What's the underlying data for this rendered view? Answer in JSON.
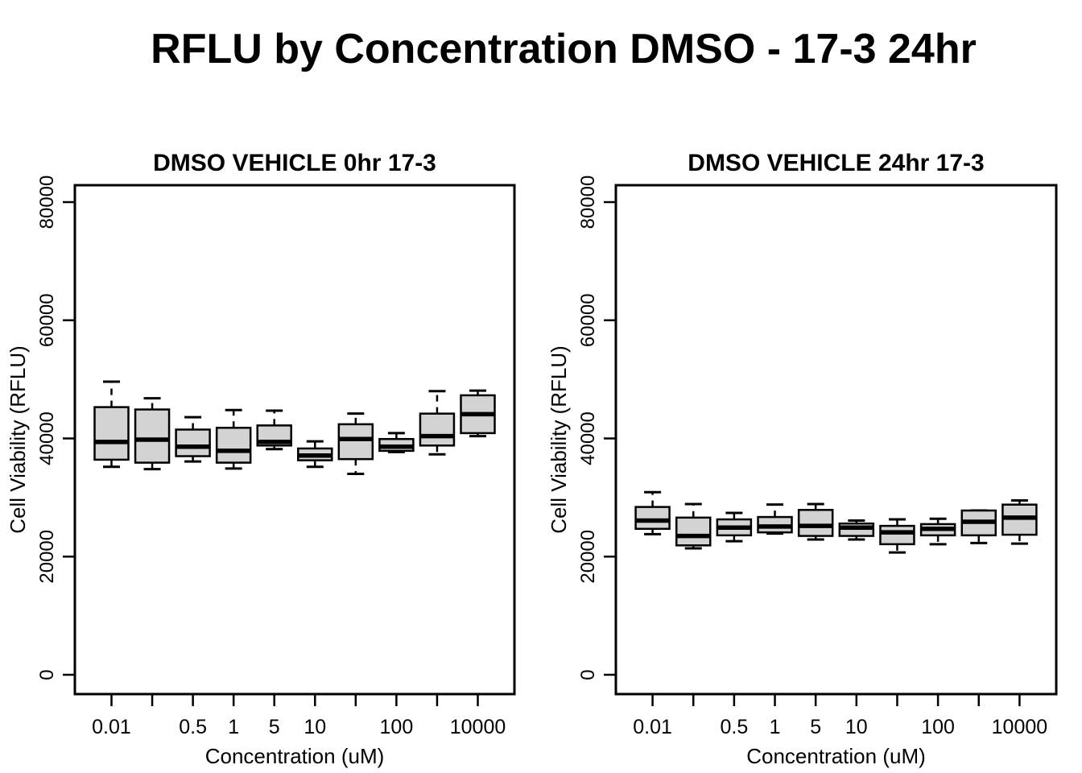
{
  "title": "RFLU by Concentration DMSO - 17-3 24hr",
  "styles": {
    "box_fill": "#d3d3d3",
    "line_color": "#000000",
    "background": "#ffffff"
  },
  "chart_data": [
    {
      "type": "boxplot",
      "title": "DMSO VEHICLE 0hr 17-3",
      "xlabel": "Concentration (uM)",
      "ylabel": "Cell Viability (RFLU)",
      "ylim": [
        0,
        80000
      ],
      "grid": false,
      "ytick_values": [
        0,
        20000,
        40000,
        60000,
        80000
      ],
      "ytick_labels": [
        "0",
        "20000",
        "40000",
        "60000",
        "80000"
      ],
      "xtick_labels": [
        "0.01",
        "",
        "0.5",
        "1",
        "5",
        "10",
        "",
        "100",
        "",
        "10000"
      ],
      "boxes": [
        {
          "whisker_low": 35200,
          "q1": 36400,
          "median": 39400,
          "q3": 45300,
          "whisker_high": 49600
        },
        {
          "whisker_low": 34800,
          "q1": 35900,
          "median": 39800,
          "q3": 44900,
          "whisker_high": 46800
        },
        {
          "whisker_low": 36100,
          "q1": 37000,
          "median": 38600,
          "q3": 41500,
          "whisker_high": 43600
        },
        {
          "whisker_low": 34900,
          "q1": 35900,
          "median": 37900,
          "q3": 41800,
          "whisker_high": 44800
        },
        {
          "whisker_low": 38200,
          "q1": 38800,
          "median": 39400,
          "q3": 42200,
          "whisker_high": 44700
        },
        {
          "whisker_low": 35200,
          "q1": 36300,
          "median": 37100,
          "q3": 38300,
          "whisker_high": 39500
        },
        {
          "whisker_low": 34000,
          "q1": 36500,
          "median": 39900,
          "q3": 42400,
          "whisker_high": 44200
        },
        {
          "whisker_low": 37700,
          "q1": 37900,
          "median": 38600,
          "q3": 39900,
          "whisker_high": 40900
        },
        {
          "whisker_low": 37300,
          "q1": 38800,
          "median": 40400,
          "q3": 44200,
          "whisker_high": 48000
        },
        {
          "whisker_low": 40400,
          "q1": 40900,
          "median": 44100,
          "q3": 47300,
          "whisker_high": 48100
        }
      ]
    },
    {
      "type": "boxplot",
      "title": "DMSO VEHICLE 24hr 17-3",
      "xlabel": "Concentration (uM)",
      "ylabel": "Cell Viability (RFLU)",
      "ylim": [
        0,
        80000
      ],
      "grid": false,
      "ytick_values": [
        0,
        20000,
        40000,
        60000,
        80000
      ],
      "ytick_labels": [
        "0",
        "20000",
        "40000",
        "60000",
        "80000"
      ],
      "xtick_labels": [
        "0.01",
        "",
        "0.5",
        "1",
        "5",
        "10",
        "",
        "100",
        "",
        "10000"
      ],
      "boxes": [
        {
          "whisker_low": 23800,
          "q1": 24700,
          "median": 26100,
          "q3": 28400,
          "whisker_high": 30900
        },
        {
          "whisker_low": 21400,
          "q1": 21900,
          "median": 23500,
          "q3": 26600,
          "whisker_high": 28900
        },
        {
          "whisker_low": 22600,
          "q1": 23600,
          "median": 24900,
          "q3": 26300,
          "whisker_high": 27400
        },
        {
          "whisker_low": 23900,
          "q1": 24100,
          "median": 25100,
          "q3": 26700,
          "whisker_high": 28800
        },
        {
          "whisker_low": 22900,
          "q1": 23500,
          "median": 25200,
          "q3": 27900,
          "whisker_high": 28900
        },
        {
          "whisker_low": 22900,
          "q1": 23500,
          "median": 24900,
          "q3": 25600,
          "whisker_high": 26100
        },
        {
          "whisker_low": 20700,
          "q1": 22100,
          "median": 24100,
          "q3": 25200,
          "whisker_high": 26300
        },
        {
          "whisker_low": 22100,
          "q1": 23600,
          "median": 24700,
          "q3": 25500,
          "whisker_high": 26400
        },
        {
          "whisker_low": 22300,
          "q1": 23600,
          "median": 25900,
          "q3": 27800,
          "whisker_high": 27800
        },
        {
          "whisker_low": 22200,
          "q1": 23700,
          "median": 26600,
          "q3": 28800,
          "whisker_high": 29500
        }
      ]
    }
  ]
}
